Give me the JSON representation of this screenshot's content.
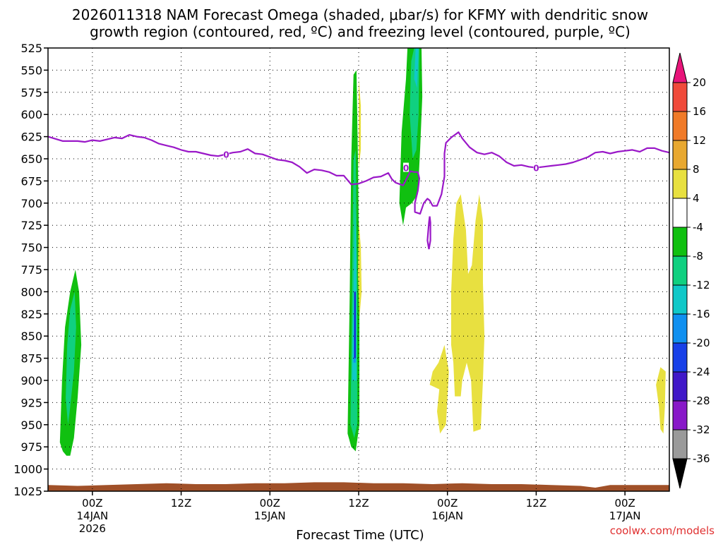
{
  "chart_data": {
    "type": "heatmap",
    "title_line1": "2026011318 NAM Forecast Omega (shaded, μbar/s) for KFMY with dendritic snow",
    "title_line2": "growth region (contoured, red, ºC) and freezing level (contoured, purple, ºC)",
    "xlabel": "Forecast Time (UTC)",
    "credit": "coolwx.com/models",
    "y_axis": {
      "unit": "mb",
      "range": [
        525,
        1025
      ],
      "reversed": true,
      "ticks": [
        "525",
        "550",
        "575",
        "600",
        "625",
        "650",
        "675",
        "700",
        "725",
        "750",
        "775",
        "800",
        "825",
        "850",
        "875",
        "900",
        "925",
        "950",
        "975",
        "1000",
        "1025"
      ]
    },
    "x_axis": {
      "range_hours": [
        0,
        84
      ],
      "ticks": [
        {
          "hour": 6,
          "label": "00Z",
          "sub1": "14JAN",
          "sub2": "2026"
        },
        {
          "hour": 18,
          "label": "12Z",
          "sub1": "",
          "sub2": ""
        },
        {
          "hour": 30,
          "label": "00Z",
          "sub1": "15JAN",
          "sub2": ""
        },
        {
          "hour": 42,
          "label": "12Z",
          "sub1": "",
          "sub2": ""
        },
        {
          "hour": 54,
          "label": "00Z",
          "sub1": "16JAN",
          "sub2": ""
        },
        {
          "hour": 66,
          "label": "12Z",
          "sub1": "",
          "sub2": ""
        },
        {
          "hour": 78,
          "label": "00Z",
          "sub1": "17JAN",
          "sub2": ""
        }
      ]
    },
    "grid": true,
    "colorbar": {
      "levels": [
        "20",
        "16",
        "12",
        "8",
        "4",
        "-4",
        "-8",
        "-12",
        "-16",
        "-20",
        "-24",
        "-28",
        "-32",
        "-36"
      ],
      "colors": [
        "#e8157a",
        "#f04a3a",
        "#f07a28",
        "#e8a830",
        "#e8e040",
        "#ffffff",
        "#10c010",
        "#10d080",
        "#10c8c8",
        "#1090f0",
        "#1840e8",
        "#4018c8",
        "#8818c8",
        "#9a9a9a",
        "#000000"
      ],
      "top_arrow_color": "#e8157a",
      "bottom_arrow_color": "#000000"
    },
    "omega_regions": [
      {
        "name": "g1",
        "color": "#10c010",
        "points": [
          [
            1.6,
            970
          ],
          [
            1.9,
            900
          ],
          [
            2.3,
            840
          ],
          [
            3.0,
            800
          ],
          [
            3.7,
            775
          ],
          [
            4.2,
            800
          ],
          [
            4.5,
            860
          ],
          [
            4.0,
            920
          ],
          [
            3.5,
            965
          ],
          [
            3.0,
            985
          ],
          [
            2.5,
            985
          ],
          [
            2.0,
            980
          ]
        ]
      },
      {
        "name": "g1c",
        "color": "#10d080",
        "points": [
          [
            2.4,
            920
          ],
          [
            2.6,
            860
          ],
          [
            3.0,
            820
          ],
          [
            3.6,
            800
          ],
          [
            3.8,
            840
          ],
          [
            3.5,
            890
          ],
          [
            3.0,
            930
          ],
          [
            2.7,
            950
          ]
        ]
      },
      {
        "name": "g2",
        "color": "#10c010",
        "points": [
          [
            40.5,
            960
          ],
          [
            40.8,
            800
          ],
          [
            41.0,
            650
          ],
          [
            41.3,
            555
          ],
          [
            41.7,
            550
          ],
          [
            41.9,
            650
          ],
          [
            42.1,
            800
          ],
          [
            42.1,
            950
          ],
          [
            41.6,
            980
          ],
          [
            41.0,
            975
          ]
        ]
      },
      {
        "name": "g2c",
        "color": "#10d080",
        "points": [
          [
            40.9,
            950
          ],
          [
            41.1,
            800
          ],
          [
            41.3,
            650
          ],
          [
            41.6,
            640
          ],
          [
            41.8,
            800
          ],
          [
            41.8,
            950
          ],
          [
            41.4,
            965
          ]
        ]
      },
      {
        "name": "g2cy",
        "color": "#10c8c8",
        "points": [
          [
            41.1,
            900
          ],
          [
            41.3,
            800
          ],
          [
            41.5,
            700
          ],
          [
            41.7,
            760
          ],
          [
            41.7,
            900
          ]
        ]
      },
      {
        "name": "g2b",
        "color": "#1090f0",
        "points": [
          [
            41.3,
            880
          ],
          [
            41.4,
            800
          ],
          [
            41.6,
            800
          ],
          [
            41.6,
            880
          ]
        ]
      },
      {
        "name": "g3",
        "color": "#10c010",
        "points": [
          [
            47.5,
            700
          ],
          [
            47.8,
            620
          ],
          [
            48.4,
            560
          ],
          [
            48.6,
            525
          ],
          [
            50.5,
            525
          ],
          [
            50.6,
            580
          ],
          [
            50.3,
            640
          ],
          [
            50.0,
            690
          ],
          [
            49.2,
            700
          ],
          [
            48.4,
            705
          ],
          [
            48.0,
            725
          ]
        ]
      },
      {
        "name": "g3c",
        "color": "#10d080",
        "points": [
          [
            48.9,
            600
          ],
          [
            49.1,
            540
          ],
          [
            49.5,
            525
          ],
          [
            50.2,
            525
          ],
          [
            50.1,
            600
          ],
          [
            49.8,
            640
          ],
          [
            49.3,
            650
          ]
        ]
      },
      {
        "name": "g3cy",
        "color": "#10c8c8",
        "points": [
          [
            49.5,
            560
          ],
          [
            49.7,
            525
          ],
          [
            50.1,
            525
          ],
          [
            49.9,
            570
          ]
        ]
      },
      {
        "name": "y1",
        "color": "#e8e040",
        "points": [
          [
            42.0,
            560
          ],
          [
            42.3,
            590
          ],
          [
            42.3,
            640
          ],
          [
            42.0,
            660
          ]
        ]
      },
      {
        "name": "y2",
        "color": "#e8e040",
        "points": [
          [
            42.0,
            720
          ],
          [
            42.3,
            750
          ],
          [
            42.4,
            800
          ],
          [
            42.1,
            830
          ],
          [
            41.9,
            780
          ]
        ]
      },
      {
        "name": "y3",
        "color": "#e8e040",
        "points": [
          [
            52.8,
            880
          ],
          [
            53.6,
            860
          ],
          [
            54.2,
            890
          ],
          [
            54.0,
            920
          ],
          [
            53.8,
            950
          ],
          [
            53.0,
            960
          ],
          [
            52.6,
            935
          ],
          [
            52.9,
            910
          ],
          [
            51.6,
            905
          ],
          [
            52.0,
            890
          ]
        ]
      },
      {
        "name": "y4",
        "color": "#e8e040",
        "points": [
          [
            54.5,
            860
          ],
          [
            54.5,
            800
          ],
          [
            54.8,
            740
          ],
          [
            55.2,
            700
          ],
          [
            55.8,
            690
          ],
          [
            56.5,
            730
          ],
          [
            56.8,
            780
          ],
          [
            57.3,
            770
          ],
          [
            57.8,
            720
          ],
          [
            58.3,
            690
          ],
          [
            58.8,
            720
          ],
          [
            58.8,
            790
          ],
          [
            59.0,
            850
          ],
          [
            58.8,
            900
          ],
          [
            58.5,
            955
          ],
          [
            57.5,
            958
          ],
          [
            57.2,
            900
          ],
          [
            56.6,
            880
          ],
          [
            56.0,
            900
          ],
          [
            55.8,
            918
          ],
          [
            55.0,
            918
          ],
          [
            54.8,
            880
          ]
        ]
      },
      {
        "name": "y5",
        "color": "#e8e040",
        "points": [
          [
            82.2,
            905
          ],
          [
            82.8,
            885
          ],
          [
            83.5,
            890
          ],
          [
            83.4,
            930
          ],
          [
            83.2,
            960
          ],
          [
            82.8,
            955
          ],
          [
            82.6,
            930
          ]
        ]
      }
    ],
    "freezing_level": {
      "color": "#9a18c8",
      "label": "0",
      "points": [
        [
          0,
          625
        ],
        [
          2,
          630
        ],
        [
          4,
          630
        ],
        [
          5,
          631
        ],
        [
          6,
          629
        ],
        [
          7,
          630
        ],
        [
          8,
          628
        ],
        [
          9,
          626
        ],
        [
          10,
          627
        ],
        [
          11,
          623
        ],
        [
          12,
          625
        ],
        [
          13,
          626
        ],
        [
          14,
          629
        ],
        [
          15,
          633
        ],
        [
          16,
          635
        ],
        [
          17,
          637
        ],
        [
          18,
          640
        ],
        [
          19,
          642
        ],
        [
          20,
          642
        ],
        [
          21,
          644
        ],
        [
          22,
          646
        ],
        [
          23,
          647
        ],
        [
          24,
          645
        ],
        [
          25,
          643
        ],
        [
          26,
          642
        ],
        [
          27,
          639
        ],
        [
          28,
          644
        ],
        [
          29,
          645
        ],
        [
          30,
          648
        ],
        [
          31,
          651
        ],
        [
          32,
          652
        ],
        [
          33,
          654
        ],
        [
          34,
          659
        ],
        [
          35,
          666
        ],
        [
          36,
          662
        ],
        [
          37,
          663
        ],
        [
          38,
          665
        ],
        [
          39,
          669
        ],
        [
          40,
          669
        ],
        [
          41,
          679
        ],
        [
          42,
          678
        ],
        [
          43,
          675
        ],
        [
          44,
          671
        ],
        [
          45,
          670
        ],
        [
          46,
          666
        ],
        [
          46.5,
          673
        ],
        [
          47,
          677
        ],
        [
          48,
          680
        ],
        [
          48.5,
          672
        ],
        [
          49,
          664
        ],
        [
          49.5,
          665
        ],
        [
          50.0,
          665
        ],
        [
          50.2,
          672
        ],
        [
          50.0,
          686
        ],
        [
          49.6,
          700
        ],
        [
          49.6,
          710
        ],
        [
          50.3,
          712
        ],
        [
          50.8,
          700
        ],
        [
          51.3,
          695
        ],
        [
          51.6,
          697
        ],
        [
          52.0,
          703
        ],
        [
          52.6,
          703
        ],
        [
          53.2,
          690
        ],
        [
          53.6,
          670
        ],
        [
          53.6,
          644
        ],
        [
          53.8,
          632
        ],
        [
          54.5,
          626
        ],
        [
          55.5,
          620
        ],
        [
          56.0,
          627
        ],
        [
          56.5,
          632
        ],
        [
          57.0,
          637
        ],
        [
          58.0,
          643
        ],
        [
          59.0,
          645
        ],
        [
          60.0,
          643
        ],
        [
          61.0,
          647
        ],
        [
          62.0,
          654
        ],
        [
          63.0,
          658
        ],
        [
          64.0,
          657
        ],
        [
          65.0,
          659
        ],
        [
          66.0,
          660
        ],
        [
          67.0,
          659
        ],
        [
          68.0,
          658
        ],
        [
          69.0,
          657
        ],
        [
          70.0,
          656
        ],
        [
          71.0,
          654
        ],
        [
          72.0,
          651
        ],
        [
          73.0,
          648
        ],
        [
          74.0,
          643
        ],
        [
          75.0,
          642
        ],
        [
          76.0,
          644
        ],
        [
          77.0,
          642
        ],
        [
          78.0,
          641
        ],
        [
          79.0,
          640
        ],
        [
          80.0,
          642
        ],
        [
          81.0,
          638
        ],
        [
          82.0,
          638
        ],
        [
          83.0,
          641
        ],
        [
          84.0,
          643
        ]
      ],
      "labels": [
        [
          24.1,
          645
        ],
        [
          48.4,
          660
        ],
        [
          66.0,
          660
        ]
      ],
      "loop": [
        [
          51.5,
          722
        ],
        [
          51.3,
          742
        ],
        [
          51.5,
          752
        ],
        [
          51.7,
          742
        ],
        [
          51.7,
          722
        ],
        [
          51.6,
          715
        ]
      ]
    },
    "dgz_line": {
      "color": "#1818d0",
      "x": 41.5,
      "y": [
        800,
        875
      ]
    },
    "terrain": {
      "color": "#a05028",
      "top_points": [
        [
          0,
          1018
        ],
        [
          4,
          1019
        ],
        [
          8,
          1018
        ],
        [
          12,
          1017
        ],
        [
          16,
          1016
        ],
        [
          20,
          1017
        ],
        [
          24,
          1017
        ],
        [
          28,
          1016
        ],
        [
          32,
          1016
        ],
        [
          36,
          1015
        ],
        [
          40,
          1015
        ],
        [
          44,
          1016
        ],
        [
          48,
          1016
        ],
        [
          52,
          1017
        ],
        [
          56,
          1016
        ],
        [
          60,
          1017
        ],
        [
          64,
          1017
        ],
        [
          68,
          1018
        ],
        [
          72,
          1019
        ],
        [
          74,
          1021
        ],
        [
          76,
          1018
        ],
        [
          80,
          1018
        ],
        [
          84,
          1018
        ]
      ]
    }
  }
}
